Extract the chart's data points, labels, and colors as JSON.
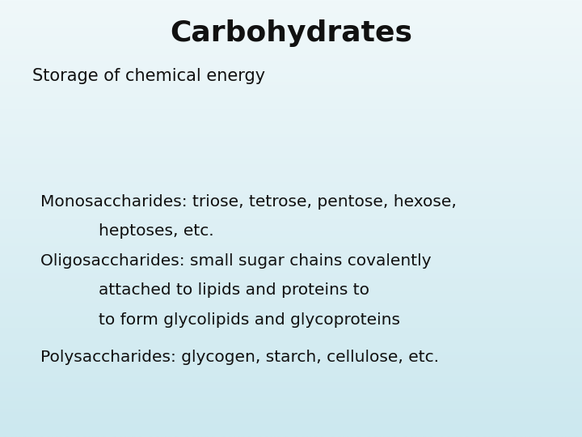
{
  "title": "Carbohydrates",
  "subtitle": "Storage of chemical energy",
  "body_lines": [
    [
      "Monosaccharides: triose, tetrose, pentose, hexose,",
      0.07
    ],
    [
      "        heptoses, etc.",
      0.17
    ],
    [
      "Oligosaccharides: small sugar chains covalently",
      0.07
    ],
    [
      "        attached to lipids and proteins to",
      0.17
    ],
    [
      "        to form glycolipids and glycoproteins",
      0.17
    ],
    [
      "Polysaccharides: glycogen, starch, cellulose, etc.",
      0.07
    ]
  ],
  "bg_color_top": "#f0f8fa",
  "bg_color_bottom": "#cce8ef",
  "text_color": "#111111",
  "title_fontsize": 26,
  "subtitle_fontsize": 15,
  "body_fontsize": 14.5,
  "font_family": "Comic Sans MS"
}
